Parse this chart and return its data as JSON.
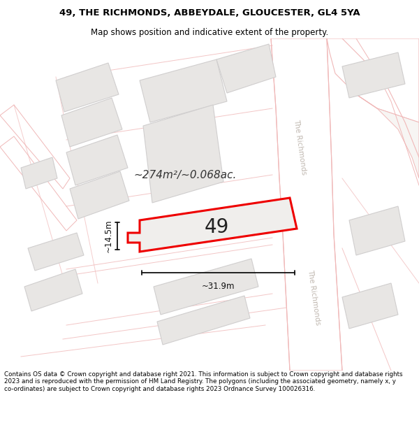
{
  "title": "49, THE RICHMONDS, ABBEYDALE, GLOUCESTER, GL4 5YA",
  "subtitle": "Map shows position and indicative extent of the property.",
  "footer": "Contains OS data © Crown copyright and database right 2021. This information is subject to Crown copyright and database rights 2023 and is reproduced with the permission of HM Land Registry. The polygons (including the associated geometry, namely x, y co-ordinates) are subject to Crown copyright and database rights 2023 Ordnance Survey 100026316.",
  "area_text": "~274m²/~0.068ac.",
  "dim_width": "~31.9m",
  "dim_height": "~14.5m",
  "plot_number": "49",
  "map_bg": "#f7f5f3",
  "road_line_color": "#f0b8b8",
  "road_fill": "#ffffff",
  "building_fill": "#e8e6e4",
  "building_outline": "#d0cece",
  "plot_fill": "#f0eeec",
  "plot_outline": "#ee0000",
  "road_label_color": "#aaaaaa",
  "title_color": "#000000",
  "footer_color": "#000000",
  "street_label_color": "#c0b8b0"
}
